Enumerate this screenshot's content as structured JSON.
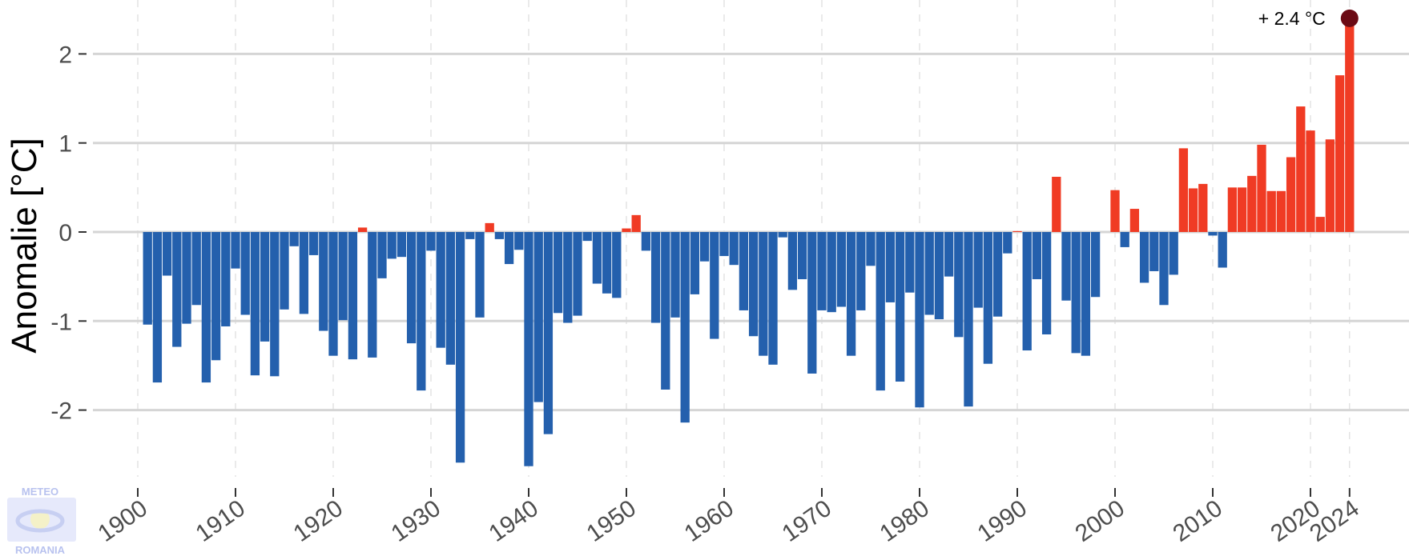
{
  "chart_data": {
    "type": "bar",
    "title": "",
    "xlabel": "",
    "ylabel": "Anomalie [°C]",
    "xlim": [
      1900,
      2024
    ],
    "ylim": [
      -2.9,
      2.5
    ],
    "x_ticks": [
      1900,
      1910,
      1920,
      1930,
      1940,
      1950,
      1960,
      1970,
      1980,
      1990,
      2000,
      2010,
      2020,
      2024
    ],
    "y_ticks": [
      2,
      1,
      0,
      -1,
      -2
    ],
    "grid": true,
    "legend": "none",
    "colors": {
      "positive": "#f03b24",
      "negative": "#2460ad",
      "highlight": "#6b0a14"
    },
    "x_start": 1901,
    "values": [
      -1.04,
      -1.69,
      -0.49,
      -1.29,
      -1.03,
      -0.82,
      -1.69,
      -1.44,
      -1.06,
      -0.41,
      -0.93,
      -1.61,
      -1.23,
      -1.62,
      -0.87,
      -0.16,
      -0.92,
      -0.26,
      -1.11,
      -1.39,
      -0.99,
      -1.43,
      0.05,
      -1.41,
      -0.52,
      -0.3,
      -0.28,
      -1.25,
      -1.78,
      -0.21,
      -1.3,
      -1.49,
      -2.59,
      -0.08,
      -0.96,
      0.1,
      -0.08,
      -0.36,
      -0.2,
      -2.63,
      -1.91,
      -2.27,
      -0.91,
      -1.02,
      -0.94,
      -0.1,
      -0.58,
      -0.69,
      -0.74,
      0.04,
      0.19,
      -0.21,
      -1.02,
      -1.77,
      -0.96,
      -2.14,
      -0.7,
      -0.33,
      -1.2,
      -0.27,
      -0.37,
      -0.88,
      -1.17,
      -1.39,
      -1.49,
      -0.06,
      -0.65,
      -0.53,
      -1.59,
      -0.88,
      -0.9,
      -0.84,
      -1.39,
      -0.88,
      -0.38,
      -1.78,
      -0.79,
      -1.68,
      -0.68,
      -1.97,
      -0.93,
      -0.98,
      -0.5,
      -1.18,
      -1.96,
      -0.85,
      -1.48,
      -0.95,
      -0.24,
      0.01,
      -1.33,
      -0.53,
      -1.15,
      0.62,
      -0.77,
      -1.36,
      -1.39,
      -0.73,
      0.0,
      0.47,
      -0.17,
      0.26,
      -0.57,
      -0.44,
      -0.82,
      -0.48,
      0.94,
      0.49,
      0.54,
      -0.04,
      -0.4,
      0.5,
      0.5,
      0.63,
      0.98,
      0.46,
      0.46,
      0.84,
      1.41,
      1.14,
      0.17,
      1.04,
      1.76,
      2.4
    ],
    "annotation": {
      "text": "+ 2.4 °C",
      "x": 2024,
      "y": 2.4
    }
  },
  "logo": {
    "top": "METEO",
    "bottom": "ROMANIA"
  }
}
